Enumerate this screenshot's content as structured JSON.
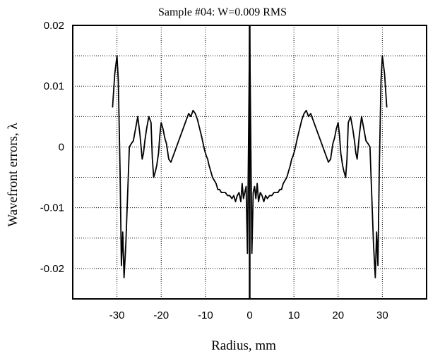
{
  "chart_data": {
    "type": "line",
    "title": "Sample #04: W=0.009 RMS",
    "xlabel": "Radius, mm",
    "ylabel": "Wavefront errors, λ",
    "xlim": [
      -40,
      40
    ],
    "ylim": [
      -0.025,
      0.02
    ],
    "x_ticks": [
      -30,
      -20,
      -10,
      0,
      10,
      20,
      30
    ],
    "x_tick_labels": [
      "-30",
      "-20",
      "-10",
      "0",
      "10",
      "20",
      "30"
    ],
    "y_ticks": [
      0.02,
      0.01,
      0,
      -0.01,
      -0.02
    ],
    "y_tick_labels": [
      "0.02",
      "0.01",
      "0",
      "-0.01",
      "-0.02"
    ],
    "y_grid_lines": [
      0.02,
      0.015,
      0.01,
      0.005,
      0,
      -0.005,
      -0.01,
      -0.015,
      -0.02
    ],
    "grid": true,
    "grid_style": "dotted",
    "vertical_line_x": 0,
    "series": [
      {
        "color": "#000000",
        "x": [
          -31,
          -30.5,
          -30,
          -29.7,
          -29.3,
          -29,
          -28.7,
          -28.4,
          -28,
          -27.6,
          -27.2,
          -26.8,
          -26.3,
          -25.8,
          -25.3,
          -24.8,
          -24.3,
          -24,
          -23.7,
          -23.3,
          -22.8,
          -22.3,
          -22,
          -21.7,
          -21.3,
          -21,
          -20.6,
          -20.3,
          -20,
          -19.6,
          -19.2,
          -18.8,
          -18.3,
          -17.8,
          -17.3,
          -16.8,
          -16.3,
          -15.8,
          -15.3,
          -14.8,
          -14.3,
          -13.8,
          -13.3,
          -12.8,
          -12.3,
          -11.8,
          -11.3,
          -10.8,
          -10.5,
          -10.2,
          -9.8,
          -9.5,
          -9.2,
          -8.8,
          -8.4,
          -8,
          -7.6,
          -7.2,
          -6.8,
          -6.4,
          -6,
          -5.5,
          -5,
          -4.5,
          -4,
          -3.6,
          -3.2,
          -2.8,
          -2.4,
          -2,
          -1.7,
          -1.4,
          -1.1,
          -0.8,
          -0.5,
          0,
          0.5,
          0.8,
          1.1,
          1.4,
          1.7,
          2,
          2.4,
          2.8,
          3.2,
          3.6,
          4,
          4.5,
          5,
          5.5,
          6,
          6.4,
          6.8,
          7.2,
          7.6,
          8,
          8.4,
          8.8,
          9.2,
          9.5,
          9.8,
          10.2,
          10.5,
          10.8,
          11.3,
          11.8,
          12.3,
          12.8,
          13.3,
          13.8,
          14.3,
          14.8,
          15.3,
          15.8,
          16.3,
          16.8,
          17.3,
          17.8,
          18.3,
          18.8,
          19.2,
          19.6,
          20,
          20.3,
          20.6,
          21,
          21.3,
          21.7,
          22,
          22.3,
          22.8,
          23.3,
          23.7,
          24,
          24.3,
          24.8,
          25.3,
          25.8,
          26.3,
          26.8,
          27.2,
          27.6,
          28,
          28.4,
          28.7,
          29,
          29.3,
          29.7,
          30,
          30.5,
          31
        ],
        "values": [
          0.0065,
          0.012,
          0.015,
          0.011,
          -0.004,
          -0.0195,
          -0.014,
          -0.0215,
          -0.016,
          -0.008,
          0.0,
          0.0005,
          0.001,
          0.003,
          0.005,
          0.002,
          -0.002,
          -0.001,
          0.001,
          0.003,
          0.005,
          0.004,
          -0.002,
          -0.005,
          -0.004,
          -0.003,
          -0.001,
          0.002,
          0.004,
          0.003,
          0.0015,
          0.0005,
          -0.002,
          -0.0025,
          -0.0015,
          -0.0005,
          0.0005,
          0.0015,
          0.0025,
          0.0035,
          0.0045,
          0.0055,
          0.005,
          0.006,
          0.0055,
          0.0045,
          0.003,
          0.0015,
          0.0005,
          -0.0005,
          -0.0015,
          -0.002,
          -0.003,
          -0.004,
          -0.005,
          -0.0055,
          -0.006,
          -0.007,
          -0.007,
          -0.0075,
          -0.0075,
          -0.0075,
          -0.008,
          -0.008,
          -0.0085,
          -0.008,
          -0.009,
          -0.008,
          -0.0075,
          -0.009,
          -0.006,
          -0.0085,
          -0.0075,
          -0.0065,
          -0.0175,
          0.02,
          -0.0175,
          -0.0075,
          -0.0065,
          -0.0085,
          -0.006,
          -0.009,
          -0.0075,
          -0.008,
          -0.009,
          -0.008,
          -0.0085,
          -0.008,
          -0.008,
          -0.0075,
          -0.0075,
          -0.0075,
          -0.007,
          -0.007,
          -0.006,
          -0.0055,
          -0.005,
          -0.004,
          -0.003,
          -0.002,
          -0.0015,
          -0.0005,
          0.0005,
          0.0015,
          0.003,
          0.0045,
          0.0055,
          0.006,
          0.005,
          0.0055,
          0.0045,
          0.0035,
          0.0025,
          0.0015,
          0.0005,
          -0.0005,
          -0.0015,
          -0.0025,
          -0.002,
          0.0005,
          0.0015,
          0.003,
          0.004,
          0.002,
          -0.001,
          -0.003,
          -0.004,
          -0.005,
          -0.002,
          0.004,
          0.005,
          0.003,
          0.001,
          -0.001,
          -0.002,
          0.002,
          0.005,
          0.003,
          0.001,
          0.0005,
          0.0,
          -0.008,
          -0.016,
          -0.0215,
          -0.014,
          -0.0195,
          -0.004,
          0.011,
          0.015,
          0.012,
          0.0065
        ]
      }
    ]
  }
}
